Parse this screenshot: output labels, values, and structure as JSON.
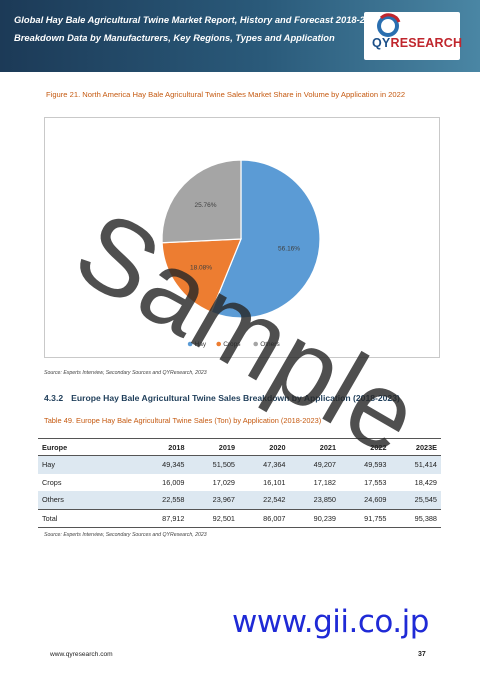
{
  "header": {
    "line1": "Global Hay Bale Agricultural Twine Market Report, History and Forecast 2018-2029,",
    "line2": "Breakdown Data by Manufacturers, Key Regions, Types and Application",
    "logo_q": "QY",
    "logo_r": "RESEARCH",
    "colors": {
      "band": "#1c3a57",
      "accent": "#c0262d"
    }
  },
  "figure": {
    "title": "Figure 21.   North America Hay Bale Agricultural Twine Sales Market Share in Volume by Application in 2022",
    "source": "Source: Experts Interview, Secondary Sources and QYResearch, 2023"
  },
  "chart_data": {
    "type": "pie",
    "title": "",
    "slices": [
      {
        "name": "Hay",
        "value": 56.16,
        "label": "56.16%",
        "color": "#5b9bd5"
      },
      {
        "name": "Crops",
        "value": 18.08,
        "label": "18.08%",
        "color": "#ed7d31"
      },
      {
        "name": "Others",
        "value": 25.76,
        "label": "25.76%",
        "color": "#a5a5a5"
      }
    ],
    "legend_position": "bottom"
  },
  "section": {
    "number": "4.3.2",
    "title": "Europe Hay Bale Agricultural Twine Sales Breakdown by Application (2018-2023)"
  },
  "table": {
    "title": "Table 49.   Europe Hay Bale Agricultural Twine Sales (Ton) by Application (2018-2023)",
    "headers": [
      "Europe",
      "2018",
      "2019",
      "2020",
      "2021",
      "2022",
      "2023E"
    ],
    "rows": [
      [
        "Hay",
        "49,345",
        "51,505",
        "47,364",
        "49,207",
        "49,593",
        "51,414"
      ],
      [
        "Crops",
        "16,009",
        "17,029",
        "16,101",
        "17,182",
        "17,553",
        "18,429"
      ],
      [
        "Others",
        "22,558",
        "23,967",
        "22,542",
        "23,850",
        "24,609",
        "25,545"
      ],
      [
        "Total",
        "87,912",
        "92,501",
        "86,007",
        "90,239",
        "91,755",
        "95,388"
      ]
    ],
    "source": "Source: Experts Interview, Secondary Sources and QYResearch, 2023"
  },
  "footer": {
    "url": "www.qyresearch.com",
    "page": "37"
  },
  "watermark": {
    "text": "Sample",
    "site": "www.gii.co.jp"
  }
}
